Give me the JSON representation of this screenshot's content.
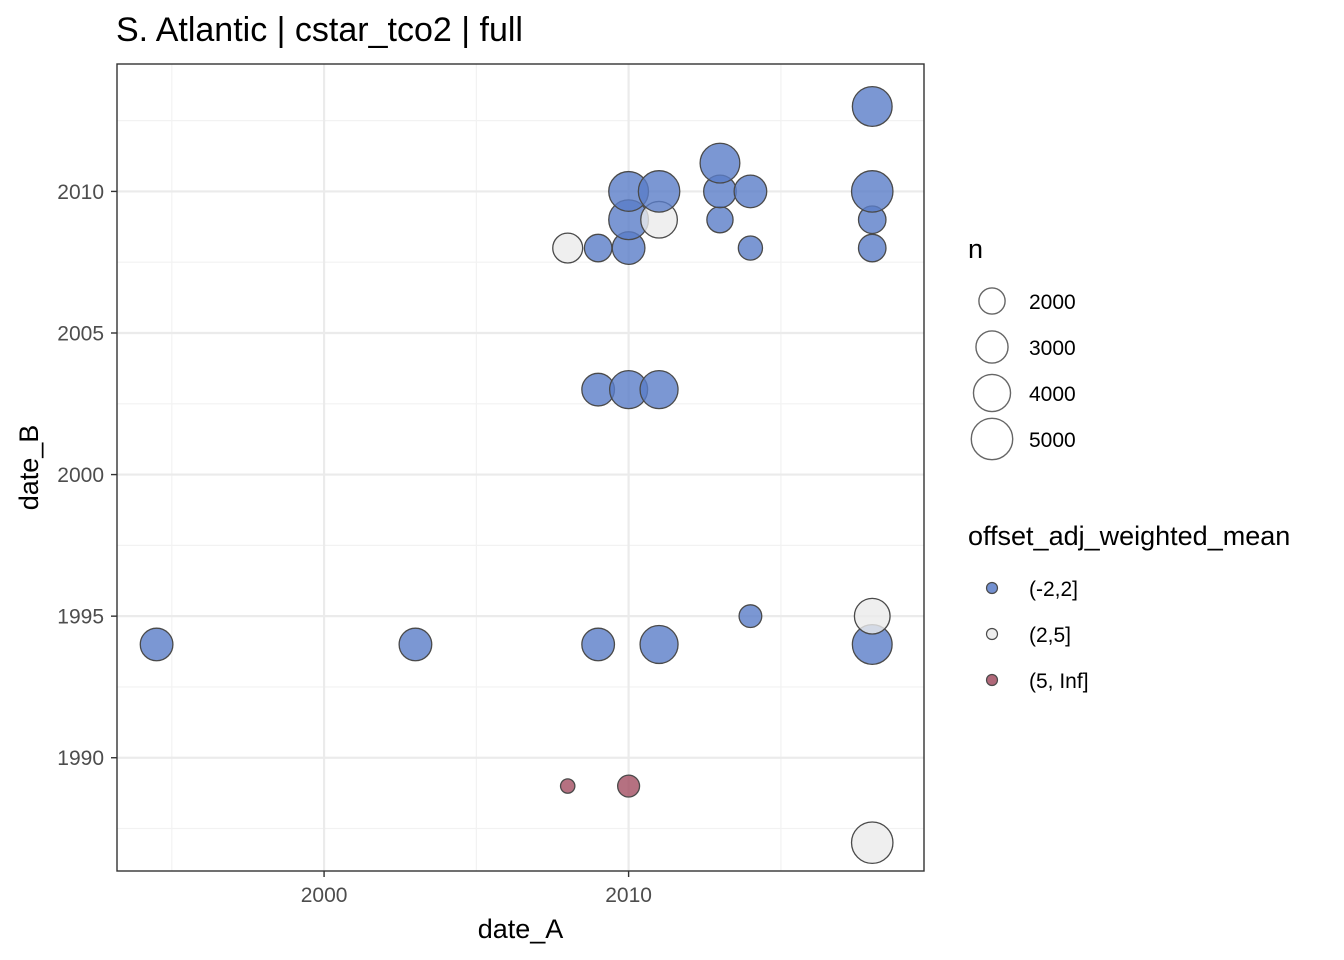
{
  "chart_data": {
    "type": "scatter",
    "title": "S. Atlantic | cstar_tco2 | full",
    "xlabel": "date_A",
    "ylabel": "date_B",
    "xlim": [
      1993.2,
      2019.7
    ],
    "ylim": [
      1986.0,
      2014.5
    ],
    "x_ticks": [
      2000,
      2010
    ],
    "y_ticks": [
      1990,
      1995,
      2000,
      2005,
      2010
    ],
    "grid": true,
    "legend_position": "right",
    "size_legend": {
      "title": "n",
      "entries": [
        {
          "label": "2000",
          "n": 2000
        },
        {
          "label": "3000",
          "n": 3000
        },
        {
          "label": "4000",
          "n": 4000
        },
        {
          "label": "5000",
          "n": 5000
        }
      ]
    },
    "color_legend": {
      "title": "offset_adj_weighted_mean",
      "entries": [
        {
          "label": "(-2,2]",
          "color": "#5A7DC8"
        },
        {
          "label": "(2,5]",
          "color": "#EBEBEB"
        },
        {
          "label": "(5, Inf]",
          "color": "#A24E62"
        }
      ]
    },
    "points": [
      {
        "x": 1994.5,
        "y": 1994,
        "n": 3100,
        "group": "(-2,2]"
      },
      {
        "x": 2003,
        "y": 1994,
        "n": 3100,
        "group": "(-2,2]"
      },
      {
        "x": 2009,
        "y": 1994,
        "n": 3100,
        "group": "(-2,2]"
      },
      {
        "x": 2011,
        "y": 1994,
        "n": 4200,
        "group": "(-2,2]"
      },
      {
        "x": 2018,
        "y": 1994,
        "n": 4600,
        "group": "(-2,2]"
      },
      {
        "x": 2014,
        "y": 1995,
        "n": 1500,
        "group": "(-2,2]"
      },
      {
        "x": 2018,
        "y": 1995,
        "n": 3700,
        "group": "(2,5]"
      },
      {
        "x": 2009,
        "y": 2003,
        "n": 3100,
        "group": "(-2,2]"
      },
      {
        "x": 2010,
        "y": 2003,
        "n": 4200,
        "group": "(-2,2]"
      },
      {
        "x": 2011,
        "y": 2003,
        "n": 4200,
        "group": "(-2,2]"
      },
      {
        "x": 2008,
        "y": 2008,
        "n": 2600,
        "group": "(2,5]"
      },
      {
        "x": 2009,
        "y": 2008,
        "n": 2200,
        "group": "(-2,2]"
      },
      {
        "x": 2010,
        "y": 2008,
        "n": 3100,
        "group": "(-2,2]"
      },
      {
        "x": 2014,
        "y": 2008,
        "n": 1700,
        "group": "(-2,2]"
      },
      {
        "x": 2018,
        "y": 2008,
        "n": 2200,
        "group": "(-2,2]"
      },
      {
        "x": 2010,
        "y": 2009,
        "n": 4600,
        "group": "(-2,2]"
      },
      {
        "x": 2011,
        "y": 2009,
        "n": 3900,
        "group": "(2,5]"
      },
      {
        "x": 2013,
        "y": 2009,
        "n": 2000,
        "group": "(-2,2]"
      },
      {
        "x": 2018,
        "y": 2009,
        "n": 2200,
        "group": "(-2,2]"
      },
      {
        "x": 2010,
        "y": 2010,
        "n": 4600,
        "group": "(-2,2]"
      },
      {
        "x": 2011,
        "y": 2010,
        "n": 5000,
        "group": "(-2,2]"
      },
      {
        "x": 2013,
        "y": 2010,
        "n": 3100,
        "group": "(-2,2]"
      },
      {
        "x": 2014,
        "y": 2010,
        "n": 3100,
        "group": "(-2,2]"
      },
      {
        "x": 2018,
        "y": 2010,
        "n": 5000,
        "group": "(-2,2]"
      },
      {
        "x": 2013,
        "y": 2011,
        "n": 4600,
        "group": "(-2,2]"
      },
      {
        "x": 2018,
        "y": 2013,
        "n": 4600,
        "group": "(-2,2]"
      },
      {
        "x": 2008,
        "y": 1989,
        "n": 600,
        "group": "(5, Inf]"
      },
      {
        "x": 2010,
        "y": 1989,
        "n": 1400,
        "group": "(5, Inf]"
      },
      {
        "x": 2018,
        "y": 1987,
        "n": 5000,
        "group": "(2,5]"
      }
    ]
  }
}
